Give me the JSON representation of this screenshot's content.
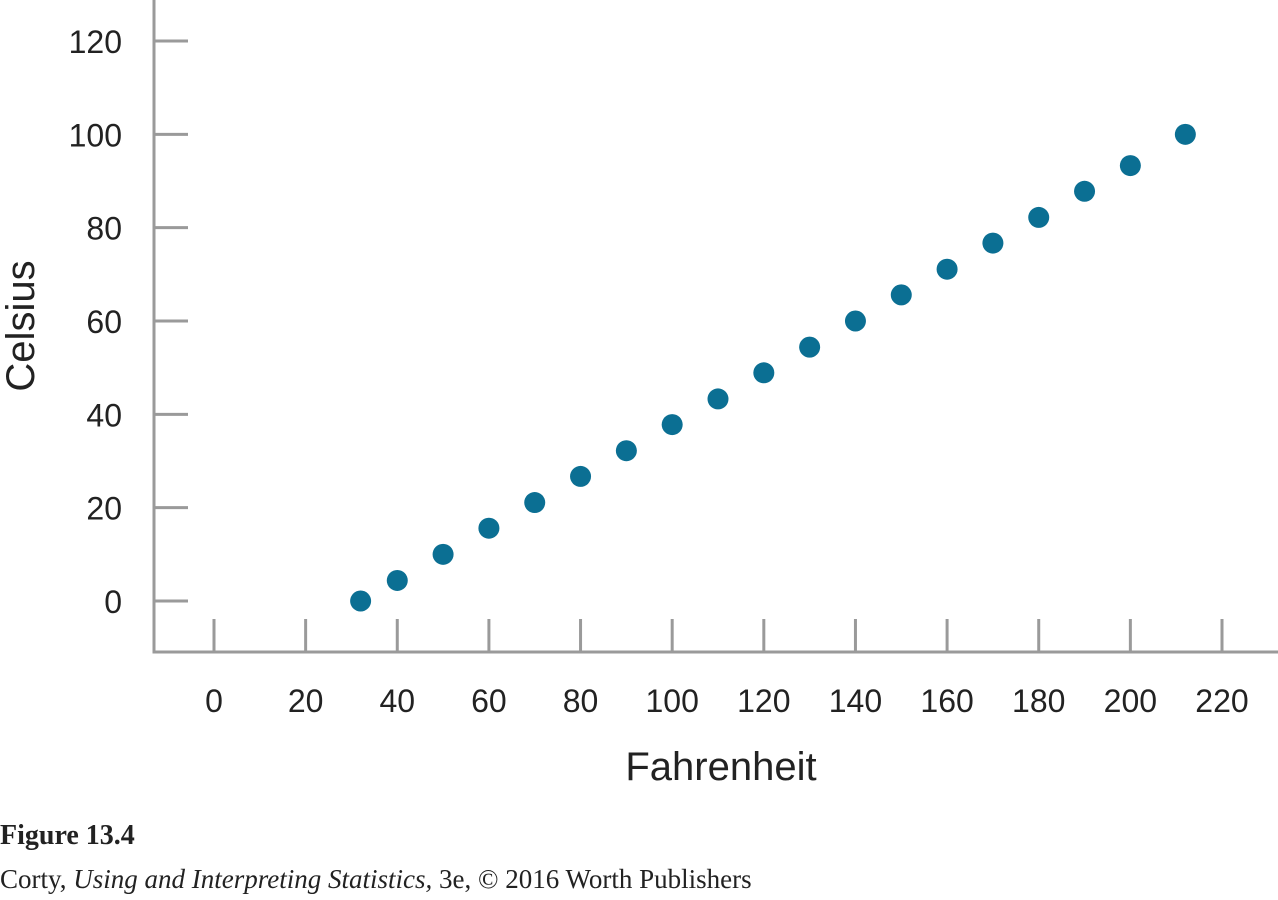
{
  "chart_data": {
    "type": "scatter",
    "xlabel": "Fahrenheit",
    "ylabel": "Celsius",
    "xlim": [
      -15,
      230
    ],
    "ylim": [
      -11,
      130
    ],
    "x_ticks": [
      0,
      20,
      40,
      60,
      80,
      100,
      120,
      140,
      160,
      180,
      200,
      220
    ],
    "y_ticks": [
      0,
      20,
      40,
      60,
      80,
      100,
      120
    ],
    "grid": false,
    "point_color": "#0b6f93",
    "axis_color": "#9a9a9a",
    "series": [
      {
        "x": [
          32,
          40,
          50,
          60,
          70,
          80,
          90,
          100,
          110,
          120,
          130,
          140,
          150,
          160,
          170,
          180,
          190,
          200,
          212
        ],
        "y": [
          0,
          4.4,
          10,
          15.6,
          21.1,
          26.7,
          32.2,
          37.8,
          43.3,
          48.9,
          54.4,
          60,
          65.6,
          71.1,
          76.7,
          82.2,
          87.8,
          93.3,
          100
        ]
      }
    ]
  },
  "caption": {
    "figure_label": "Figure 13.4",
    "author": "Corty, ",
    "book_title": "Using and Interpreting Statistics,",
    "edition_publisher": " 3e, © 2016 Worth Publishers"
  }
}
